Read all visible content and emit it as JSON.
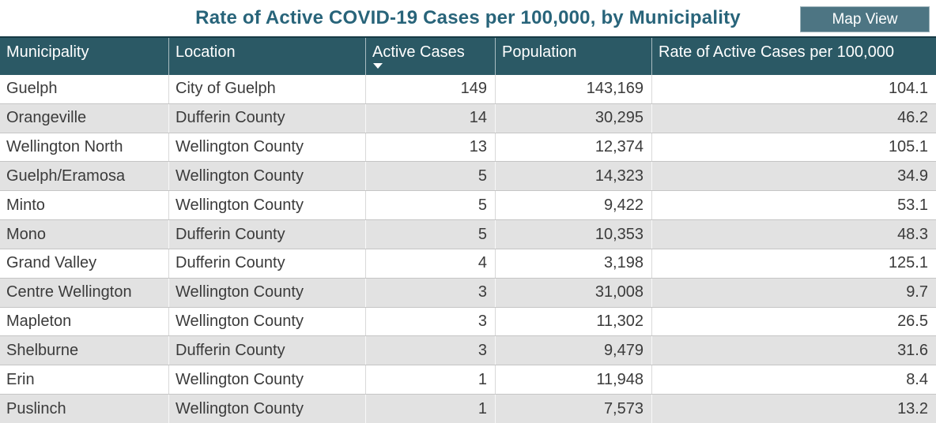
{
  "title": "Rate of Active COVID-19 Cases per 100,000, by Municipality",
  "toolbar": {
    "map_view_label": "Map View"
  },
  "table": {
    "columns": [
      {
        "key": "municipality",
        "label": "Municipality",
        "align": "left",
        "sort": null
      },
      {
        "key": "location",
        "label": "Location",
        "align": "left",
        "sort": null
      },
      {
        "key": "active-cases",
        "label": "Active Cases",
        "align": "right",
        "sort": "desc"
      },
      {
        "key": "population",
        "label": "Population",
        "align": "right",
        "sort": null
      },
      {
        "key": "rate",
        "label": "Rate of Active Cases per 100,000",
        "align": "right",
        "sort": null
      }
    ],
    "rows": [
      [
        "Guelph",
        "City of Guelph",
        "149",
        "143,169",
        "104.1"
      ],
      [
        "Orangeville",
        "Dufferin County",
        "14",
        "30,295",
        "46.2"
      ],
      [
        "Wellington North",
        "Wellington County",
        "13",
        "12,374",
        "105.1"
      ],
      [
        "Guelph/Eramosa",
        "Wellington County",
        "5",
        "14,323",
        "34.9"
      ],
      [
        "Minto",
        "Wellington County",
        "5",
        "9,422",
        "53.1"
      ],
      [
        "Mono",
        "Dufferin County",
        "5",
        "10,353",
        "48.3"
      ],
      [
        "Grand Valley",
        "Dufferin County",
        "4",
        "3,198",
        "125.1"
      ],
      [
        "Centre Wellington",
        "Wellington County",
        "3",
        "31,008",
        "9.7"
      ],
      [
        "Mapleton",
        "Wellington County",
        "3",
        "11,302",
        "26.5"
      ],
      [
        "Shelburne",
        "Dufferin County",
        "3",
        "9,479",
        "31.6"
      ],
      [
        "Erin",
        "Wellington County",
        "1",
        "11,948",
        "8.4"
      ],
      [
        "Puslinch",
        "Wellington County",
        "1",
        "7,573",
        "13.2"
      ]
    ],
    "sort": {
      "column": "Active Cases",
      "direction": "desc"
    }
  },
  "chart_data": {
    "type": "table",
    "title": "Rate of Active COVID-19 Cases per 100,000, by Municipality",
    "columns": [
      "Municipality",
      "Location",
      "Active Cases",
      "Population",
      "Rate of Active Cases per 100,000"
    ],
    "rows": [
      [
        "Guelph",
        "City of Guelph",
        149,
        143169,
        104.1
      ],
      [
        "Orangeville",
        "Dufferin County",
        14,
        30295,
        46.2
      ],
      [
        "Wellington North",
        "Wellington County",
        13,
        12374,
        105.1
      ],
      [
        "Guelph/Eramosa",
        "Wellington County",
        5,
        14323,
        34.9
      ],
      [
        "Minto",
        "Wellington County",
        5,
        9422,
        53.1
      ],
      [
        "Mono",
        "Dufferin County",
        5,
        10353,
        48.3
      ],
      [
        "Grand Valley",
        "Dufferin County",
        4,
        3198,
        125.1
      ],
      [
        "Centre Wellington",
        "Wellington County",
        3,
        31008,
        9.7
      ],
      [
        "Mapleton",
        "Wellington County",
        3,
        11302,
        26.5
      ],
      [
        "Shelburne",
        "Dufferin County",
        3,
        9479,
        31.6
      ],
      [
        "Erin",
        "Wellington County",
        1,
        11948,
        8.4
      ],
      [
        "Puslinch",
        "Wellington County",
        1,
        7573,
        13.2
      ]
    ],
    "sort": {
      "column": "Active Cases",
      "direction": "desc"
    }
  },
  "colors": {
    "header_bg": "#2b5965",
    "header_top_border": "#173a45",
    "title_text": "#28647a",
    "button_bg": "#4d7583",
    "button_border": "#9db3ba",
    "row_alt_bg": "#e2e2e2",
    "row_border": "#c5c5c5",
    "body_text": "#3b3b3b"
  }
}
